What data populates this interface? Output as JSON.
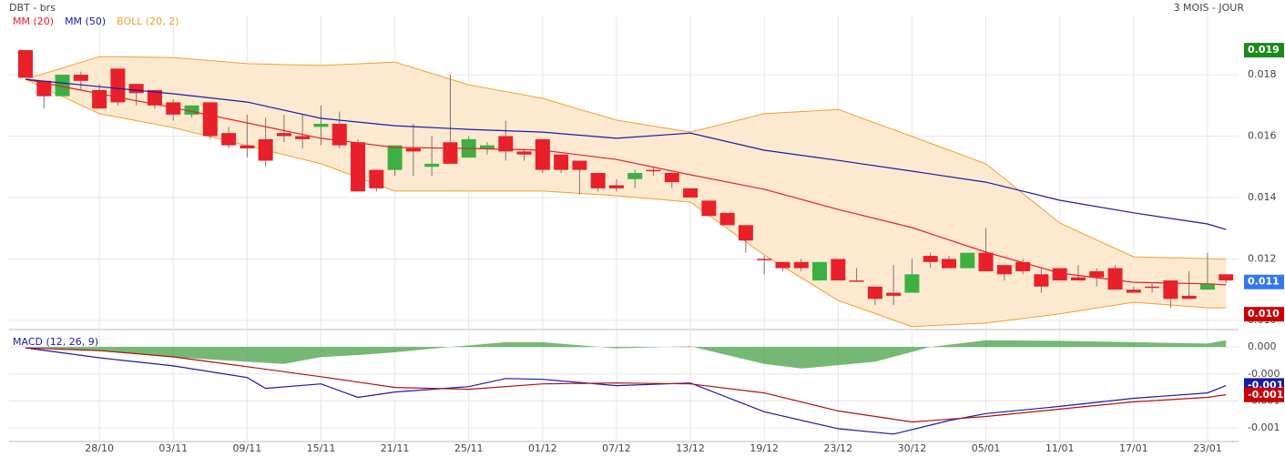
{
  "header": {
    "title": "DBT - brs",
    "period": "3 MOIS - JOUR"
  },
  "chart_data": [
    {
      "type": "candlestick",
      "categories": [
        null,
        null,
        null,
        null,
        "28/10",
        null,
        null,
        null,
        "03/11",
        null,
        null,
        null,
        "09/11",
        null,
        null,
        null,
        "15/11",
        null,
        null,
        null,
        "21/11",
        null,
        null,
        null,
        "25/11",
        null,
        null,
        null,
        "01/12",
        null,
        null,
        null,
        "07/12",
        null,
        null,
        null,
        "13/12",
        null,
        null,
        null,
        "19/12",
        null,
        null,
        null,
        "23/12",
        null,
        null,
        null,
        "30/12",
        null,
        null,
        null,
        "05/01",
        null,
        null,
        null,
        "11/01",
        null,
        null,
        null,
        "17/01",
        null,
        null,
        null,
        "23/01",
        null
      ],
      "open": [
        0.0188,
        0.0178,
        0.0173,
        0.018,
        0.0175,
        0.0182,
        0.0177,
        0.0175,
        0.0171,
        0.0167,
        0.0171,
        0.0161,
        0.0157,
        0.0159,
        0.0161,
        0.016,
        0.0163,
        0.0164,
        0.0158,
        0.0149,
        0.0149,
        0.0156,
        0.015,
        0.0158,
        0.0153,
        0.0156,
        0.016,
        0.0155,
        0.0159,
        0.0154,
        0.0152,
        0.0148,
        0.0144,
        0.0146,
        0.0149,
        0.0148,
        0.0143,
        0.0139,
        0.0135,
        0.0131,
        0.012,
        0.0119,
        0.0119,
        0.0113,
        0.012,
        0.0113,
        0.0111,
        0.0109,
        0.0109,
        0.0121,
        0.012,
        0.0117,
        0.0122,
        0.0118,
        0.0119,
        0.0115,
        0.0117,
        0.0114,
        0.0116,
        0.0117,
        0.011,
        0.0111,
        0.0113,
        0.0108,
        0.011,
        0.0115
      ],
      "high": [
        0.0188,
        0.0178,
        0.018,
        0.0181,
        0.0177,
        0.0182,
        0.0177,
        0.0175,
        0.0172,
        0.017,
        0.0171,
        0.0163,
        0.0167,
        0.0166,
        0.0167,
        0.0167,
        0.017,
        0.0168,
        0.0159,
        0.0149,
        0.0157,
        0.0164,
        0.016,
        0.018,
        0.016,
        0.0158,
        0.0165,
        0.0156,
        0.0159,
        0.0154,
        0.0152,
        0.0148,
        0.0146,
        0.0149,
        0.015,
        0.0148,
        0.0143,
        0.0139,
        0.0135,
        0.0131,
        0.0121,
        0.0119,
        0.012,
        0.0119,
        0.012,
        0.0117,
        0.0111,
        0.0118,
        0.012,
        0.0122,
        0.0121,
        0.0122,
        0.013,
        0.0118,
        0.012,
        0.0117,
        0.0117,
        0.0118,
        0.0117,
        0.0118,
        0.0111,
        0.0112,
        0.0113,
        0.0116,
        0.0122,
        0.0115
      ],
      "low": [
        0.0179,
        0.0169,
        0.0173,
        0.0175,
        0.0169,
        0.017,
        0.017,
        0.0169,
        0.0165,
        0.0166,
        0.0159,
        0.0156,
        0.0153,
        0.015,
        0.0158,
        0.0156,
        0.0157,
        0.0156,
        0.0142,
        0.0142,
        0.0147,
        0.0147,
        0.0147,
        0.0151,
        0.0153,
        0.0154,
        0.0152,
        0.0152,
        0.0148,
        0.0148,
        0.0141,
        0.0142,
        0.0142,
        0.0143,
        0.0147,
        0.0143,
        0.014,
        0.0134,
        0.0131,
        0.0122,
        0.0115,
        0.0116,
        0.0116,
        0.0113,
        0.0113,
        0.0113,
        0.0105,
        0.0105,
        0.0109,
        0.0117,
        0.0117,
        0.0117,
        0.0116,
        0.0113,
        0.0115,
        0.0109,
        0.0113,
        0.0113,
        0.0111,
        0.011,
        0.0109,
        0.0109,
        0.0104,
        0.0107,
        0.011,
        0.0112
      ],
      "close": [
        0.0179,
        0.0173,
        0.018,
        0.0178,
        0.0169,
        0.0171,
        0.0174,
        0.017,
        0.0167,
        0.017,
        0.016,
        0.0157,
        0.0156,
        0.0152,
        0.016,
        0.0159,
        0.0164,
        0.0157,
        0.0142,
        0.0143,
        0.0157,
        0.0155,
        0.0151,
        0.0151,
        0.0159,
        0.0157,
        0.0155,
        0.0154,
        0.0149,
        0.0149,
        0.0149,
        0.0143,
        0.0143,
        0.0148,
        0.0149,
        0.0145,
        0.014,
        0.0134,
        0.0131,
        0.0126,
        0.012,
        0.0117,
        0.0117,
        0.0119,
        0.0113,
        0.0113,
        0.0107,
        0.0108,
        0.0115,
        0.0119,
        0.0117,
        0.0122,
        0.0116,
        0.0115,
        0.0116,
        0.0111,
        0.0113,
        0.0113,
        0.0114,
        0.011,
        0.0109,
        0.0111,
        0.0107,
        0.0107,
        0.0112,
        0.0113
      ],
      "up_color": "#3cb043",
      "down_color": "#e8202a",
      "overlays": [
        {
          "name": "MM (20)",
          "color": "#e8202a",
          "x": [
            0,
            4,
            8,
            12,
            16,
            20,
            24,
            28,
            32,
            36,
            40,
            44,
            48,
            52,
            56,
            60,
            64,
            65
          ],
          "values": [
            0.01785,
            0.01738,
            0.01693,
            0.01643,
            0.01593,
            0.01563,
            0.0156,
            0.01554,
            0.01524,
            0.01474,
            0.01427,
            0.01361,
            0.01302,
            0.01222,
            0.01154,
            0.01124,
            0.01119,
            0.01116
          ]
        },
        {
          "name": "MM (50)",
          "color": "#1a1aa8",
          "x": [
            0,
            4,
            8,
            12,
            16,
            20,
            24,
            28,
            32,
            36,
            40,
            44,
            48,
            52,
            56,
            60,
            64,
            65
          ],
          "values": [
            0.01785,
            0.01761,
            0.01738,
            0.01711,
            0.01658,
            0.01634,
            0.01622,
            0.01613,
            0.01593,
            0.0161,
            0.01554,
            0.01521,
            0.01486,
            0.0145,
            0.01391,
            0.0135,
            0.01314,
            0.01296
          ]
        }
      ],
      "band": {
        "name": "BOLL (20, 2)",
        "color": "#f0a030",
        "fill": "#fde9cf",
        "x": [
          0,
          4,
          8,
          12,
          16,
          20,
          24,
          28,
          32,
          36,
          40,
          44,
          48,
          52,
          56,
          60,
          64,
          65
        ],
        "upper": [
          0.01785,
          0.01859,
          0.01856,
          0.01836,
          0.0183,
          0.01841,
          0.01767,
          0.01723,
          0.01652,
          0.01613,
          0.01673,
          0.01687,
          0.01599,
          0.0151,
          0.01317,
          0.01207,
          0.01201,
          0.01199
        ],
        "lower": [
          0.01785,
          0.01673,
          0.01628,
          0.01569,
          0.0151,
          0.01421,
          0.01421,
          0.01421,
          0.01406,
          0.01385,
          0.01213,
          0.01065,
          0.0098,
          0.00991,
          0.01021,
          0.01059,
          0.01041,
          0.01041
        ]
      },
      "ylim": [
        0.00976,
        0.01984
      ],
      "yticks": [
        0.018,
        0.016,
        0.014,
        0.012,
        {
          "value": 0.01,
          "label": "0.010"
        }
      ],
      "badges": [
        {
          "value": 0.0188,
          "label": "0.019",
          "color": "#1a8a1a"
        },
        {
          "value": 0.01125,
          "label": "0.011",
          "color": "#3377ee"
        },
        {
          "value": 0.0102,
          "label": "0.010",
          "color": "#cc0000"
        }
      ],
      "grid": true
    },
    {
      "type": "line",
      "title": "MACD (12, 26, 9)",
      "series": [
        {
          "color": "#1a1aa8",
          "x": [
            0,
            4,
            8,
            12,
            13,
            16,
            18,
            20,
            24,
            26,
            28,
            32,
            36,
            40,
            44,
            47,
            50,
            52,
            56,
            60,
            64,
            65
          ],
          "values": [
            -1.33e-05,
            -0.00016,
            -0.00028,
            -0.000453,
            -0.000613,
            -0.000547,
            -0.000747,
            -0.000667,
            -0.000587,
            -0.000467,
            -0.00048,
            -0.000573,
            -0.000533,
            -0.00096,
            -0.00121,
            -0.00129,
            -0.00109,
            -0.000987,
            -0.00088,
            -0.00076,
            -0.00068,
            -0.000573
          ]
        },
        {
          "color": "#b01010",
          "x": [
            0,
            4,
            8,
            12,
            16,
            20,
            24,
            28,
            32,
            36,
            40,
            44,
            48,
            52,
            56,
            60,
            64,
            65
          ],
          "values": [
            -1.33e-05,
            -5.33e-05,
            -0.000147,
            -0.000293,
            -0.00044,
            -0.0006,
            -0.000627,
            -0.000547,
            -0.000533,
            -0.000547,
            -0.00068,
            -0.000947,
            -0.00111,
            -0.00103,
            -0.00092,
            -0.000813,
            -0.000747,
            -0.000707
          ]
        }
      ],
      "histogram": {
        "color": "#3a9a3a",
        "x": [
          0,
          4,
          8,
          12,
          14,
          16,
          18,
          20,
          23,
          26,
          28,
          32,
          36,
          40,
          42,
          46,
          49,
          52,
          56,
          60,
          64,
          65
        ],
        "values": [
          0,
          -5e-05,
          -0.00015,
          -0.00022,
          -0.00025,
          -0.00015,
          -0.00012,
          -8e-05,
          0,
          7e-05,
          7e-05,
          -2e-05,
          1e-05,
          -0.00025,
          -0.00032,
          -0.00022,
          0,
          0.0001,
          9e-05,
          7e-05,
          5e-05,
          0.0001
        ]
      },
      "ylim": [
        -0.0014,
        0.00019
      ],
      "yticks": [
        {
          "value": 0,
          "label": "0.000"
        },
        {
          "value": -0.0004,
          "label": "-0.000"
        },
        {
          "value": -0.0008,
          "label": "-0.001"
        },
        {
          "value": -0.0012,
          "label": "-0.001"
        }
      ],
      "badges": [
        {
          "value": -0.00057,
          "label": "-0.001",
          "color": "#1a1aa8"
        },
        {
          "value": -0.00071,
          "label": "-0.001",
          "color": "#cc0000"
        }
      ],
      "grid": true
    }
  ]
}
